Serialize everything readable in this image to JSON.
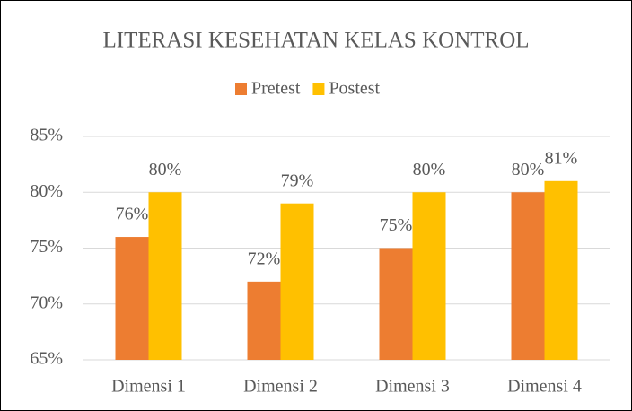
{
  "chart_data": {
    "type": "bar",
    "title": "LITERASI KESEHATAN KELAS KONTROL",
    "categories": [
      "Dimensi 1",
      "Dimensi 2",
      "Dimensi 3",
      "Dimensi 4"
    ],
    "series": [
      {
        "name": "Pretest",
        "color": "#ed7d31",
        "values": [
          76,
          72,
          75,
          80
        ],
        "value_labels": [
          "76%",
          "72%",
          "75%",
          "80%"
        ]
      },
      {
        "name": "Postest",
        "color": "#ffc000",
        "values": [
          80,
          79,
          80,
          81
        ],
        "value_labels": [
          "80%",
          "79%",
          "80%",
          "81%"
        ]
      }
    ],
    "ylim": [
      65,
      85
    ],
    "yticks": [
      {
        "value": 65,
        "label": "65%"
      },
      {
        "value": 70,
        "label": "70%"
      },
      {
        "value": 75,
        "label": "75%"
      },
      {
        "value": 80,
        "label": "80%"
      },
      {
        "value": 85,
        "label": "85%"
      }
    ],
    "grid": true,
    "legend": "top"
  }
}
